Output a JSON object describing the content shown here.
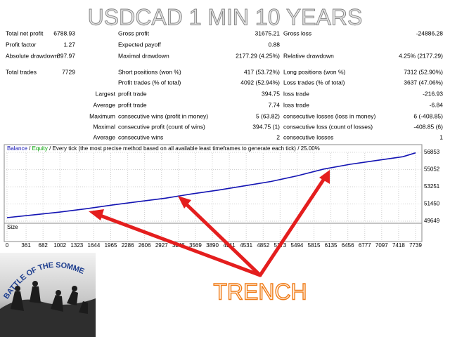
{
  "title": "USDCAD 1 MIN 10 YEARS",
  "stats": [
    {
      "label": "Total net profit",
      "value": "6788.93",
      "label2": "Gross profit",
      "value2": "31675.21",
      "label3": "Gross loss",
      "value3": "-24886.28"
    },
    {
      "label": "Profit factor",
      "value": "1.27",
      "label2": "Expected payoff",
      "value2": "0.88"
    },
    {
      "label": "Absolute drawdown",
      "value": "897.97",
      "label2": "Maximal drawdown",
      "value2": "2177.29 (4.25%)",
      "label3": "Relative drawdown",
      "value3": "4.25% (2177.29)"
    },
    {
      "label": "Total trades",
      "value": "7729",
      "label2": "Short positions (won %)",
      "value2": "417 (53.72%)",
      "label3": "Long positions (won %)",
      "value3": "7312 (52.90%)"
    },
    {
      "label2": "Profit trades (% of total)",
      "value2": "4092 (52.94%)",
      "label3": "Loss trades (% of total)",
      "value3": "3637 (47.06%)"
    },
    {
      "prefix": "Largest",
      "label2": "profit trade",
      "value2": "394.75",
      "label3": "loss trade",
      "value3": "-216.93"
    },
    {
      "prefix": "Average",
      "label2": "profit trade",
      "value2": "7.74",
      "label3": "loss trade",
      "value3": "-6.84"
    },
    {
      "prefix": "Maximum",
      "label2": "consecutive wins (profit in money)",
      "value2": "5 (63.82)",
      "label3": "consecutive losses (loss in money)",
      "value3": "6 (-408.85)"
    },
    {
      "prefix": "Maximal",
      "label2": "consecutive profit (count of wins)",
      "value2": "394.75 (1)",
      "label3": "consecutive loss (count of losses)",
      "value3": "-408.85 (6)"
    },
    {
      "prefix": "Average",
      "label2": "consecutive wins",
      "value2": "2",
      "label3": "consecutive losses",
      "value3": "1"
    }
  ],
  "chart_data": {
    "type": "line",
    "legend_separator": "/",
    "legend_extra": {
      "name": "Equity",
      "color": "#00a000"
    },
    "description": "Every tick (the most precise method based on all available least timeframes to generate each tick)",
    "quality": "25.00%",
    "x": [
      0,
      500,
      1000,
      1500,
      2000,
      2500,
      3000,
      3500,
      4000,
      4500,
      5000,
      5500,
      6000,
      6500,
      7000,
      7500,
      7739
    ],
    "series": [
      {
        "name": "Balance",
        "color": "#1414b4",
        "values": [
          50017,
          50300,
          50600,
          50950,
          51350,
          51700,
          52050,
          52500,
          52900,
          53350,
          53800,
          54400,
          55100,
          55600,
          56000,
          56400,
          56800
        ]
      }
    ],
    "xlim": [
      0,
      7739
    ],
    "xticks": [
      0,
      361,
      682,
      1002,
      1323,
      1644,
      1965,
      2286,
      2606,
      2927,
      3248,
      3569,
      3890,
      4211,
      4531,
      4852,
      5173,
      5494,
      5815,
      6135,
      6456,
      6777,
      7097,
      7418,
      7739
    ],
    "ylim": [
      49428,
      57662
    ],
    "yticks": [
      49649,
      51450,
      53251,
      55052,
      56853
    ],
    "grid": true,
    "size_label": "Size"
  },
  "annotation": "TRENCH",
  "image_caption": "BATTLE OF THE SOMME"
}
